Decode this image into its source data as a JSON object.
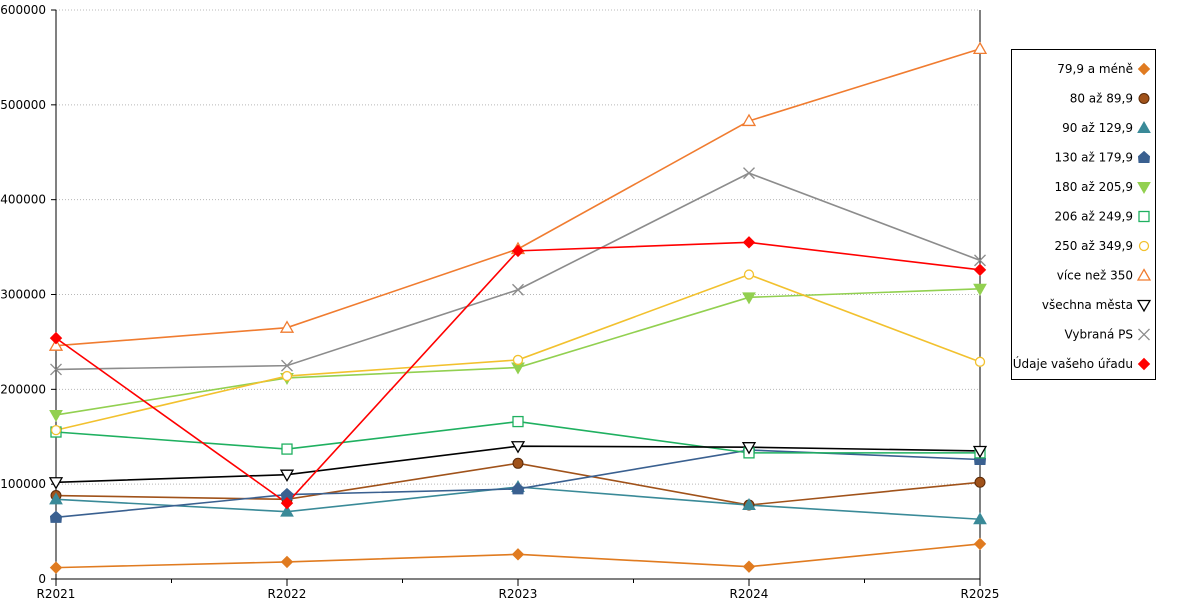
{
  "chart_data": {
    "type": "line",
    "title": "",
    "xlabel": "",
    "ylabel": "",
    "categories": [
      "R2021",
      "R2022",
      "R2023",
      "R2024",
      "R2025"
    ],
    "ylim": [
      0,
      600000
    ],
    "yticks": [
      0,
      100000,
      200000,
      300000,
      400000,
      500000,
      600000
    ],
    "grid": "horizontal-dotted",
    "legend_position": "right",
    "series": [
      {
        "name": "79,9 a méně",
        "color": "#e07b20",
        "marker": "diamond",
        "values": [
          12000,
          18000,
          26000,
          13000,
          37000
        ]
      },
      {
        "name": "80 až 89,9",
        "color": "#a0521a",
        "marker": "circle-filled",
        "values": [
          88000,
          84000,
          122000,
          78000,
          102000
        ]
      },
      {
        "name": "90 až 129,9",
        "color": "#3a8a98",
        "marker": "triangle-up-filled",
        "values": [
          84000,
          71000,
          97000,
          78000,
          63000
        ]
      },
      {
        "name": "130 až 179,9",
        "color": "#3a6090",
        "marker": "pentagon-filled",
        "values": [
          65000,
          89000,
          95000,
          136000,
          126000
        ]
      },
      {
        "name": "180 až 205,9",
        "color": "#92d050",
        "marker": "triangle-down-filled",
        "values": [
          173000,
          212000,
          223000,
          297000,
          306000
        ]
      },
      {
        "name": "206 až 249,9",
        "color": "#1fb060",
        "marker": "square-open",
        "values": [
          155000,
          137000,
          166000,
          133000,
          133000
        ]
      },
      {
        "name": "250 až 349,9",
        "color": "#f2c12e",
        "marker": "circle-open",
        "values": [
          157000,
          214000,
          231000,
          321000,
          229000
        ]
      },
      {
        "name": "více než 350",
        "color": "#f07c30",
        "marker": "triangle-up-open",
        "values": [
          246000,
          265000,
          348000,
          483000,
          559000
        ]
      },
      {
        "name": "všechna města",
        "color": "#000000",
        "marker": "triangle-down-open",
        "values": [
          102000,
          110000,
          140000,
          139000,
          135000
        ]
      },
      {
        "name": "Vybraná PS",
        "color": "#8c8c8c",
        "marker": "x",
        "values": [
          221000,
          225000,
          305000,
          428000,
          336000
        ]
      },
      {
        "name": "Údaje vašeho úřadu",
        "color": "#ff0000",
        "marker": "diamond",
        "values": [
          254000,
          80000,
          346000,
          355000,
          326000
        ]
      }
    ]
  }
}
